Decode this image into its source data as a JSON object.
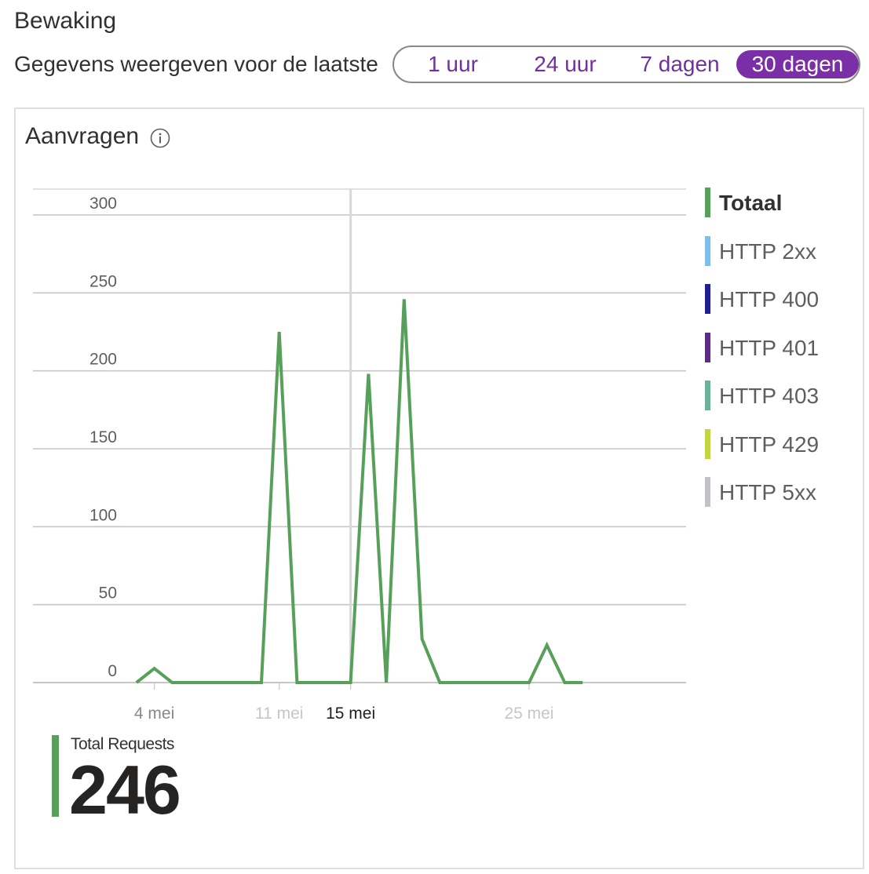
{
  "section": {
    "title": "Bewaking"
  },
  "range": {
    "label": "Gegevens weergeven voor de laatste",
    "options": [
      "1 uur",
      "24 uur",
      "7 dagen",
      "30 dagen"
    ],
    "selected": "30 dagen"
  },
  "card": {
    "title": "Aanvragen",
    "info_icon": "info-icon"
  },
  "chart_data": {
    "type": "line",
    "title": "Aanvragen",
    "xlabel": "",
    "ylabel": "",
    "ylim": [
      0,
      300
    ],
    "yticks": [
      0,
      50,
      100,
      150,
      200,
      250,
      300
    ],
    "x_range": [
      -2.8,
      33.8
    ],
    "x_ticks": [
      {
        "x": 4,
        "label": "4 mei",
        "style": "normal"
      },
      {
        "x": 11,
        "label": "11 mei",
        "style": "faded"
      },
      {
        "x": 15,
        "label": "15 mei",
        "style": "highlight"
      },
      {
        "x": 25,
        "label": "25 mei",
        "style": "faded"
      }
    ],
    "hover_x": 15,
    "series": [
      {
        "name": "Totaal",
        "color": "#57a05a",
        "x": [
          3,
          4,
          5,
          6,
          7,
          8,
          9,
          10,
          11,
          12,
          13,
          14,
          15,
          16,
          17,
          18,
          19,
          20,
          21,
          22,
          23,
          24,
          25,
          26,
          27,
          28
        ],
        "values": [
          0,
          9,
          0,
          0,
          0,
          0,
          0,
          0,
          225,
          0,
          0,
          0,
          0,
          198,
          0,
          246,
          28,
          0,
          0,
          0,
          0,
          0,
          0,
          24,
          0,
          0
        ]
      }
    ]
  },
  "legend": [
    {
      "label": "Totaal",
      "color": "#57a05a",
      "active": true
    },
    {
      "label": "HTTP 2xx",
      "color": "#7fbee8",
      "active": false
    },
    {
      "label": "HTTP 400",
      "color": "#1f1f8f",
      "active": false
    },
    {
      "label": "HTTP 401",
      "color": "#5c2d82",
      "active": false
    },
    {
      "label": "HTTP 403",
      "color": "#6bb29b",
      "active": false
    },
    {
      "label": "HTTP 429",
      "color": "#c2d642",
      "active": false
    },
    {
      "label": "HTTP 5xx",
      "color": "#c0c2c6",
      "active": false
    }
  ],
  "total": {
    "label": "Total Requests",
    "value": "246",
    "color": "#57a05a"
  }
}
